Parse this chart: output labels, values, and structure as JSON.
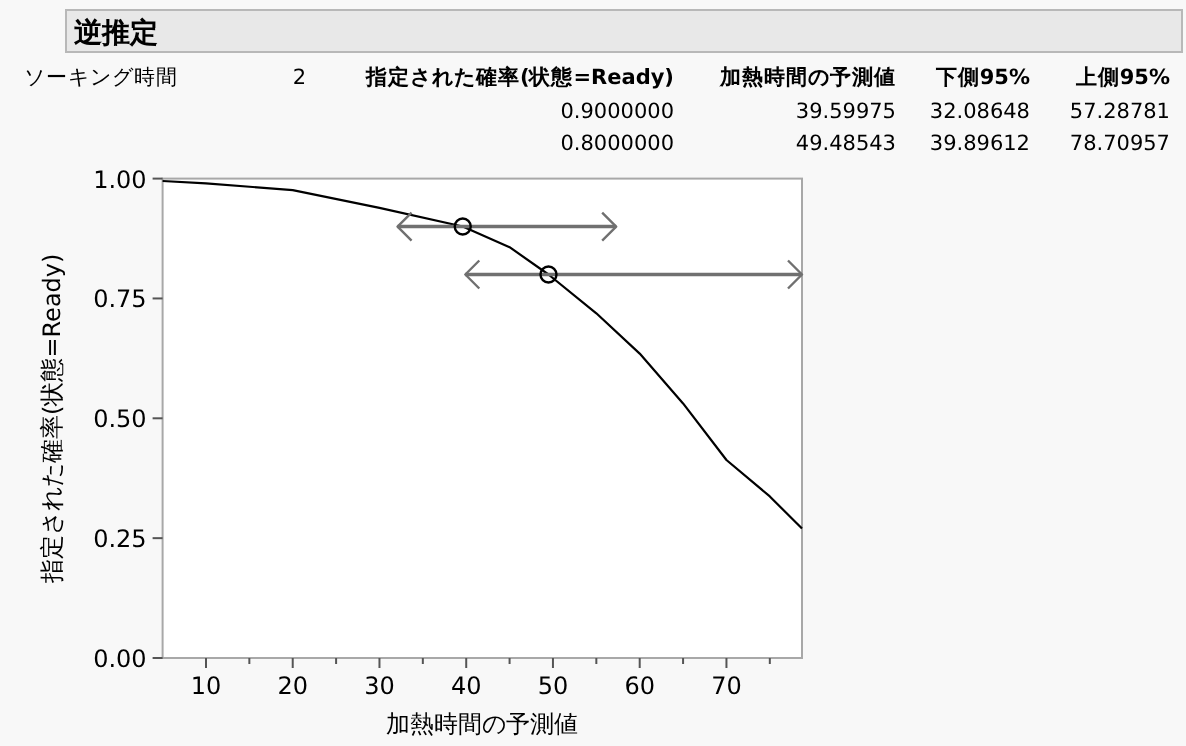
{
  "chart_data": {
    "type": "line",
    "title": "逆推定",
    "xlabel": "加熱時間の予測値",
    "ylabel": "指定された確率(状態=Ready)",
    "annotations": [
      "ソーキング時間",
      "2",
      "指定された確率(状態=Ready)",
      "加熱時間の予測値",
      "下側95%",
      "上側95%",
      "0.9000000",
      "39.59975",
      "32.08648",
      "57.28781",
      "0.8000000",
      "49.48543",
      "39.89612",
      "78.70957"
    ],
    "xlim": [
      5,
      78.71
    ],
    "ylim": [
      0,
      1
    ],
    "xticks": [
      10,
      {
        "value": 15,
        "label": null
      },
      20,
      {
        "value": 25,
        "label": null
      },
      30,
      {
        "value": 35,
        "label": null
      },
      40,
      {
        "value": 45,
        "label": null
      },
      50,
      {
        "value": 55,
        "label": null
      },
      60,
      {
        "value": 65,
        "label": null
      },
      70,
      {
        "value": 75,
        "label": null
      }
    ],
    "yticks": [
      {
        "value": 0,
        "label": "0.00"
      },
      {
        "value": 0.25,
        "label": "0.25"
      },
      {
        "value": 0.5,
        "label": "0.50"
      },
      {
        "value": 0.75,
        "label": "0.75"
      },
      {
        "value": 1,
        "label": "1.00"
      }
    ],
    "grid": false,
    "series": [
      {
        "color": "#000000",
        "marker": "none",
        "x": [
          5,
          10,
          20,
          30,
          39.59975,
          45,
          49.48543,
          55,
          60,
          65,
          70,
          75,
          78.71
        ],
        "values": [
          0.995,
          0.99,
          0.976,
          0.939,
          0.9,
          0.857,
          0.8,
          0.719,
          0.635,
          0.531,
          0.413,
          0.337,
          0.27
        ]
      },
      {
        "type": "scatter",
        "color": "#000000",
        "marker": "circle",
        "x": [
          39.59975,
          49.48543
        ],
        "values": [
          0.9,
          0.8
        ],
        "xerrors": [
          [
            32.08648,
            57.28781
          ],
          [
            39.89612,
            78.70957
          ]
        ]
      }
    ]
  }
}
